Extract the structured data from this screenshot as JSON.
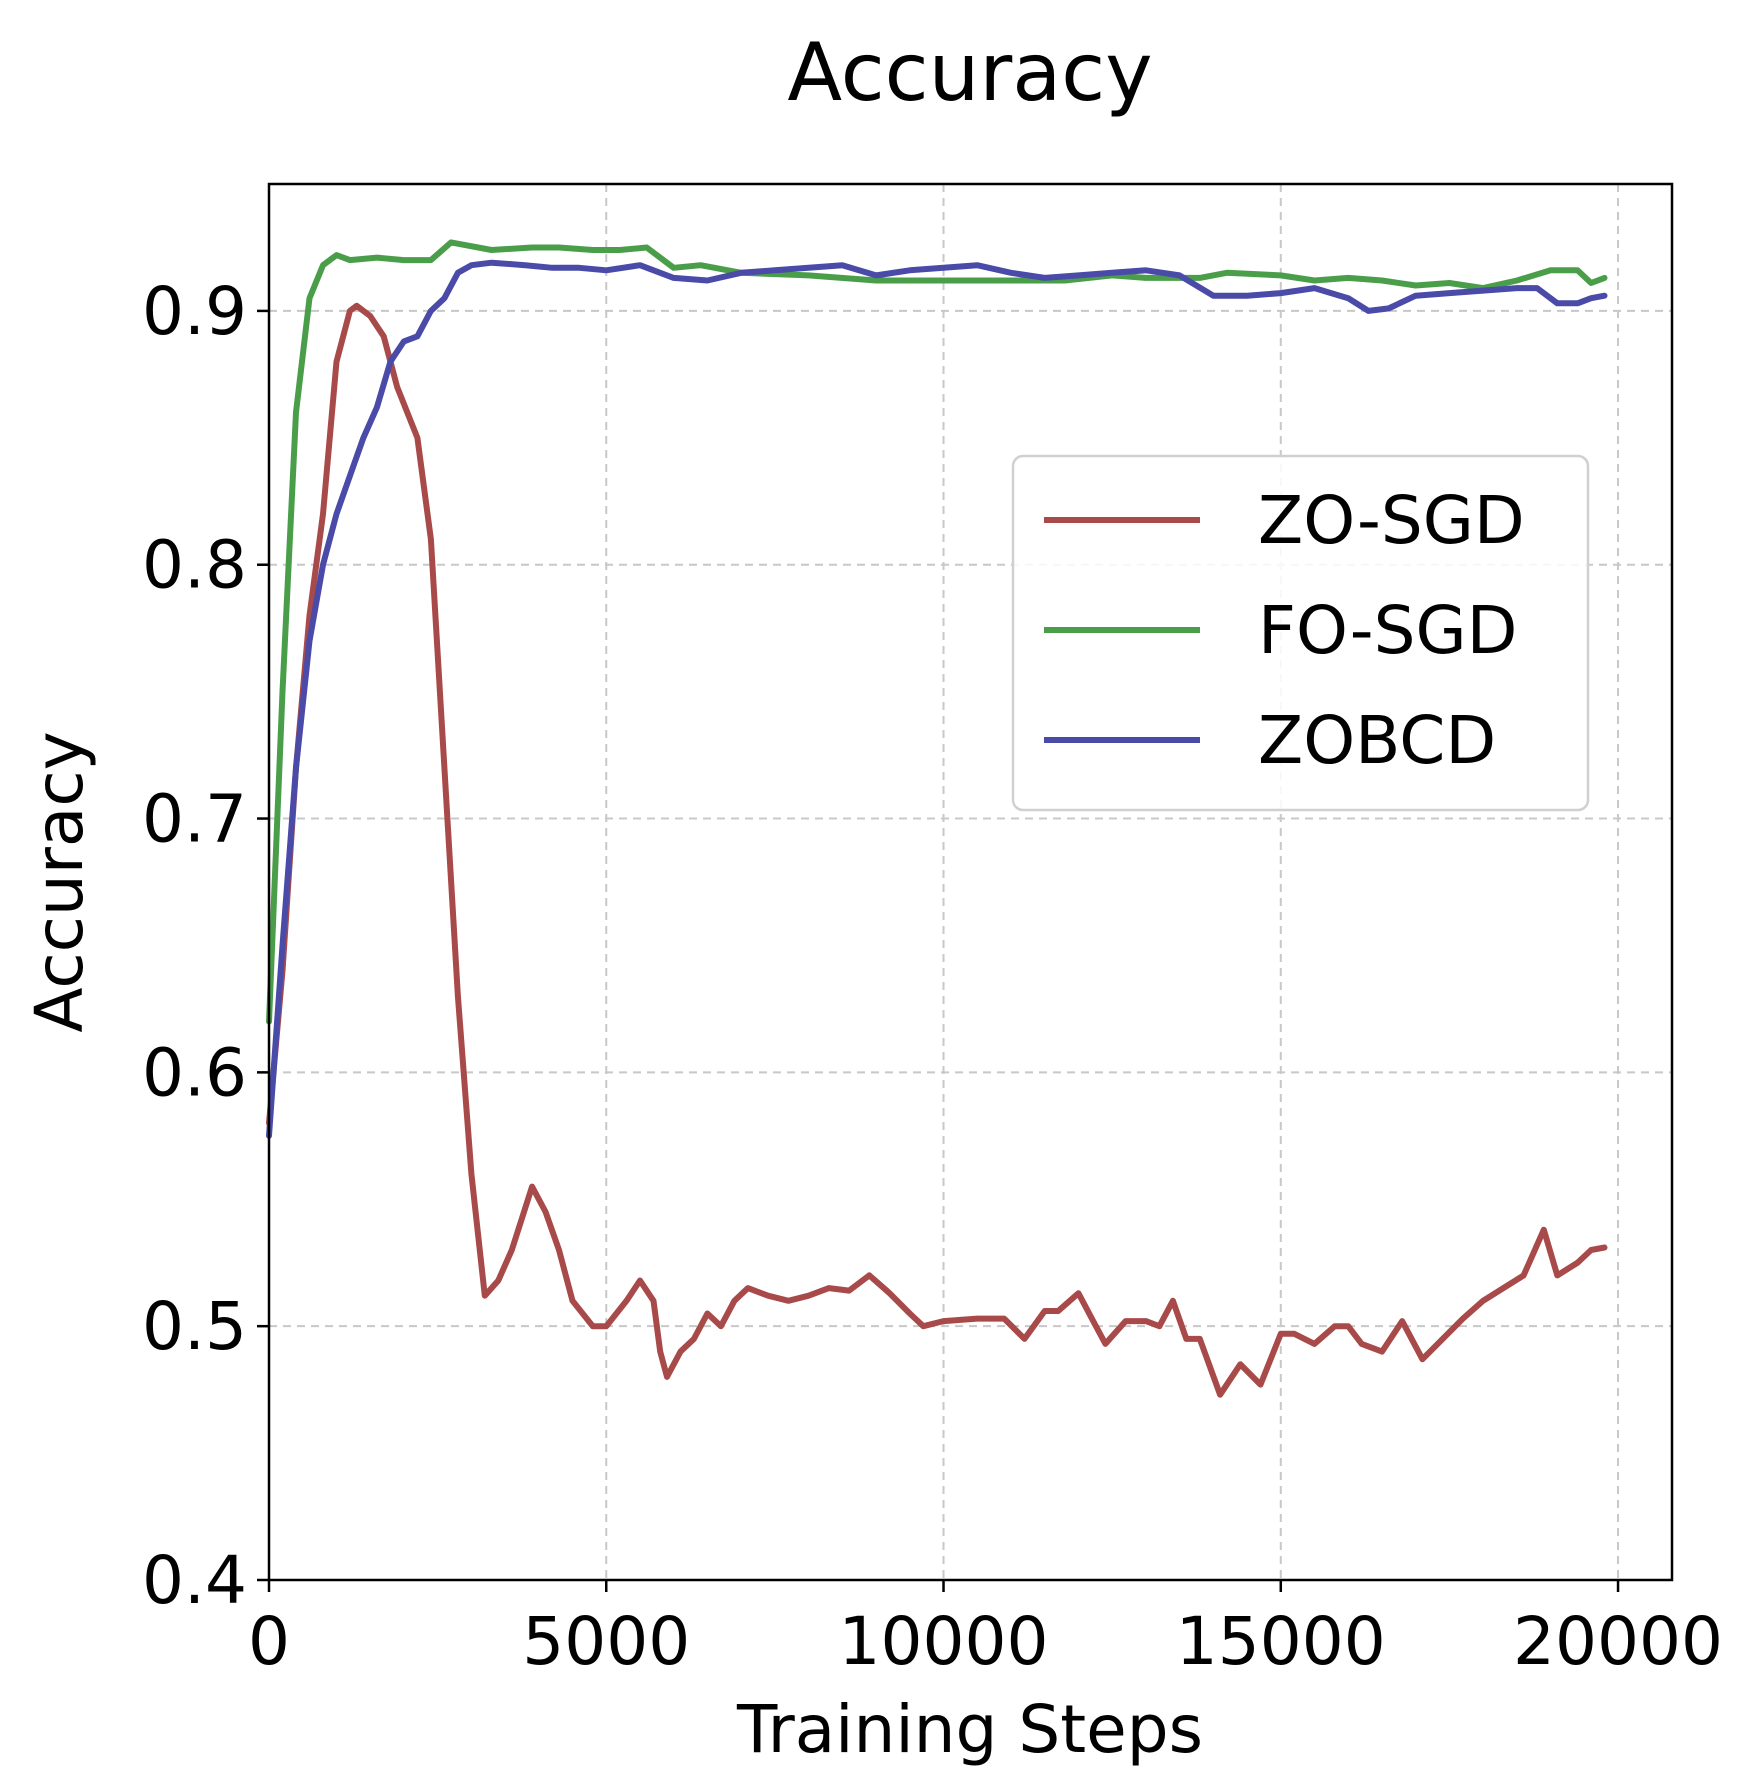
{
  "chart_data": {
    "type": "line",
    "title": "Accuracy",
    "xlabel": "Training Steps",
    "ylabel": "Accuracy",
    "xlim": [
      0,
      20800
    ],
    "ylim": [
      0.4,
      0.95
    ],
    "xticks": [
      0,
      5000,
      10000,
      15000,
      20000
    ],
    "xtick_labels": [
      "0",
      "5000",
      "10000",
      "15000",
      "20000"
    ],
    "yticks": [
      0.4,
      0.5,
      0.6,
      0.7,
      0.8,
      0.9
    ],
    "ytick_labels": [
      "0.4",
      "0.5",
      "0.6",
      "0.7",
      "0.8",
      "0.9"
    ],
    "grid": true,
    "legend_position": "center-right",
    "series": [
      {
        "name": "ZO-SGD",
        "color": "#a84a4a",
        "points": [
          [
            0,
            0.58
          ],
          [
            200,
            0.64
          ],
          [
            400,
            0.72
          ],
          [
            600,
            0.78
          ],
          [
            800,
            0.82
          ],
          [
            1000,
            0.88
          ],
          [
            1200,
            0.9
          ],
          [
            1300,
            0.902
          ],
          [
            1500,
            0.898
          ],
          [
            1700,
            0.89
          ],
          [
            1900,
            0.87
          ],
          [
            2200,
            0.85
          ],
          [
            2400,
            0.81
          ],
          [
            2600,
            0.72
          ],
          [
            2800,
            0.63
          ],
          [
            3000,
            0.56
          ],
          [
            3200,
            0.512
          ],
          [
            3400,
            0.518
          ],
          [
            3600,
            0.53
          ],
          [
            3900,
            0.555
          ],
          [
            4100,
            0.545
          ],
          [
            4300,
            0.53
          ],
          [
            4500,
            0.51
          ],
          [
            4800,
            0.5
          ],
          [
            5000,
            0.5
          ],
          [
            5300,
            0.51
          ],
          [
            5500,
            0.518
          ],
          [
            5700,
            0.51
          ],
          [
            5800,
            0.49
          ],
          [
            5900,
            0.48
          ],
          [
            6100,
            0.49
          ],
          [
            6300,
            0.495
          ],
          [
            6500,
            0.505
          ],
          [
            6700,
            0.5
          ],
          [
            6900,
            0.51
          ],
          [
            7100,
            0.515
          ],
          [
            7400,
            0.512
          ],
          [
            7700,
            0.51
          ],
          [
            8000,
            0.512
          ],
          [
            8300,
            0.515
          ],
          [
            8600,
            0.514
          ],
          [
            8900,
            0.52
          ],
          [
            9200,
            0.513
          ],
          [
            9500,
            0.505
          ],
          [
            9700,
            0.5
          ],
          [
            10000,
            0.502
          ],
          [
            10500,
            0.503
          ],
          [
            10900,
            0.503
          ],
          [
            11200,
            0.495
          ],
          [
            11500,
            0.506
          ],
          [
            11700,
            0.506
          ],
          [
            12000,
            0.513
          ],
          [
            12200,
            0.503
          ],
          [
            12400,
            0.493
          ],
          [
            12700,
            0.502
          ],
          [
            13000,
            0.502
          ],
          [
            13200,
            0.5
          ],
          [
            13400,
            0.51
          ],
          [
            13600,
            0.495
          ],
          [
            13800,
            0.495
          ],
          [
            14100,
            0.473
          ],
          [
            14400,
            0.485
          ],
          [
            14700,
            0.477
          ],
          [
            15000,
            0.497
          ],
          [
            15200,
            0.497
          ],
          [
            15500,
            0.493
          ],
          [
            15800,
            0.5
          ],
          [
            16000,
            0.5
          ],
          [
            16200,
            0.493
          ],
          [
            16500,
            0.49
          ],
          [
            16800,
            0.502
          ],
          [
            17100,
            0.487
          ],
          [
            17400,
            0.495
          ],
          [
            17700,
            0.503
          ],
          [
            18000,
            0.51
          ],
          [
            18300,
            0.515
          ],
          [
            18600,
            0.52
          ],
          [
            18900,
            0.538
          ],
          [
            19100,
            0.52
          ],
          [
            19400,
            0.525
          ],
          [
            19600,
            0.53
          ],
          [
            19800,
            0.531
          ]
        ]
      },
      {
        "name": "FO-SGD",
        "color": "#4a9e4a",
        "points": [
          [
            0,
            0.62
          ],
          [
            200,
            0.75
          ],
          [
            400,
            0.86
          ],
          [
            600,
            0.905
          ],
          [
            800,
            0.918
          ],
          [
            1000,
            0.922
          ],
          [
            1200,
            0.92
          ],
          [
            1600,
            0.921
          ],
          [
            2000,
            0.92
          ],
          [
            2400,
            0.92
          ],
          [
            2700,
            0.927
          ],
          [
            3300,
            0.924
          ],
          [
            3900,
            0.925
          ],
          [
            4300,
            0.925
          ],
          [
            4800,
            0.924
          ],
          [
            5200,
            0.924
          ],
          [
            5600,
            0.925
          ],
          [
            6000,
            0.917
          ],
          [
            6400,
            0.918
          ],
          [
            7000,
            0.915
          ],
          [
            8000,
            0.914
          ],
          [
            9000,
            0.912
          ],
          [
            10000,
            0.912
          ],
          [
            11000,
            0.912
          ],
          [
            11800,
            0.912
          ],
          [
            12500,
            0.914
          ],
          [
            13000,
            0.913
          ],
          [
            13800,
            0.913
          ],
          [
            14200,
            0.915
          ],
          [
            15000,
            0.914
          ],
          [
            15500,
            0.912
          ],
          [
            16000,
            0.913
          ],
          [
            16500,
            0.912
          ],
          [
            17000,
            0.91
          ],
          [
            17500,
            0.911
          ],
          [
            18000,
            0.909
          ],
          [
            18500,
            0.912
          ],
          [
            19000,
            0.916
          ],
          [
            19400,
            0.916
          ],
          [
            19600,
            0.911
          ],
          [
            19800,
            0.913
          ]
        ]
      },
      {
        "name": "ZOBCD",
        "color": "#4a4aa8",
        "points": [
          [
            0,
            0.575
          ],
          [
            200,
            0.65
          ],
          [
            400,
            0.72
          ],
          [
            600,
            0.77
          ],
          [
            800,
            0.8
          ],
          [
            1000,
            0.82
          ],
          [
            1200,
            0.835
          ],
          [
            1400,
            0.85
          ],
          [
            1600,
            0.862
          ],
          [
            1800,
            0.88
          ],
          [
            2000,
            0.888
          ],
          [
            2200,
            0.89
          ],
          [
            2400,
            0.9
          ],
          [
            2600,
            0.905
          ],
          [
            2800,
            0.915
          ],
          [
            3000,
            0.918
          ],
          [
            3300,
            0.919
          ],
          [
            3800,
            0.918
          ],
          [
            4200,
            0.917
          ],
          [
            4600,
            0.917
          ],
          [
            5000,
            0.916
          ],
          [
            5500,
            0.918
          ],
          [
            6000,
            0.913
          ],
          [
            6500,
            0.912
          ],
          [
            7000,
            0.915
          ],
          [
            7500,
            0.916
          ],
          [
            8000,
            0.917
          ],
          [
            8500,
            0.918
          ],
          [
            9000,
            0.914
          ],
          [
            9500,
            0.916
          ],
          [
            10000,
            0.917
          ],
          [
            10500,
            0.918
          ],
          [
            11000,
            0.915
          ],
          [
            11500,
            0.913
          ],
          [
            12000,
            0.914
          ],
          [
            12500,
            0.915
          ],
          [
            13000,
            0.916
          ],
          [
            13500,
            0.914
          ],
          [
            14000,
            0.906
          ],
          [
            14500,
            0.906
          ],
          [
            15000,
            0.907
          ],
          [
            15500,
            0.909
          ],
          [
            16000,
            0.905
          ],
          [
            16300,
            0.9
          ],
          [
            16600,
            0.901
          ],
          [
            17000,
            0.906
          ],
          [
            17500,
            0.907
          ],
          [
            18000,
            0.908
          ],
          [
            18500,
            0.909
          ],
          [
            18800,
            0.909
          ],
          [
            19100,
            0.903
          ],
          [
            19400,
            0.903
          ],
          [
            19600,
            0.905
          ],
          [
            19800,
            0.906
          ]
        ]
      }
    ]
  }
}
